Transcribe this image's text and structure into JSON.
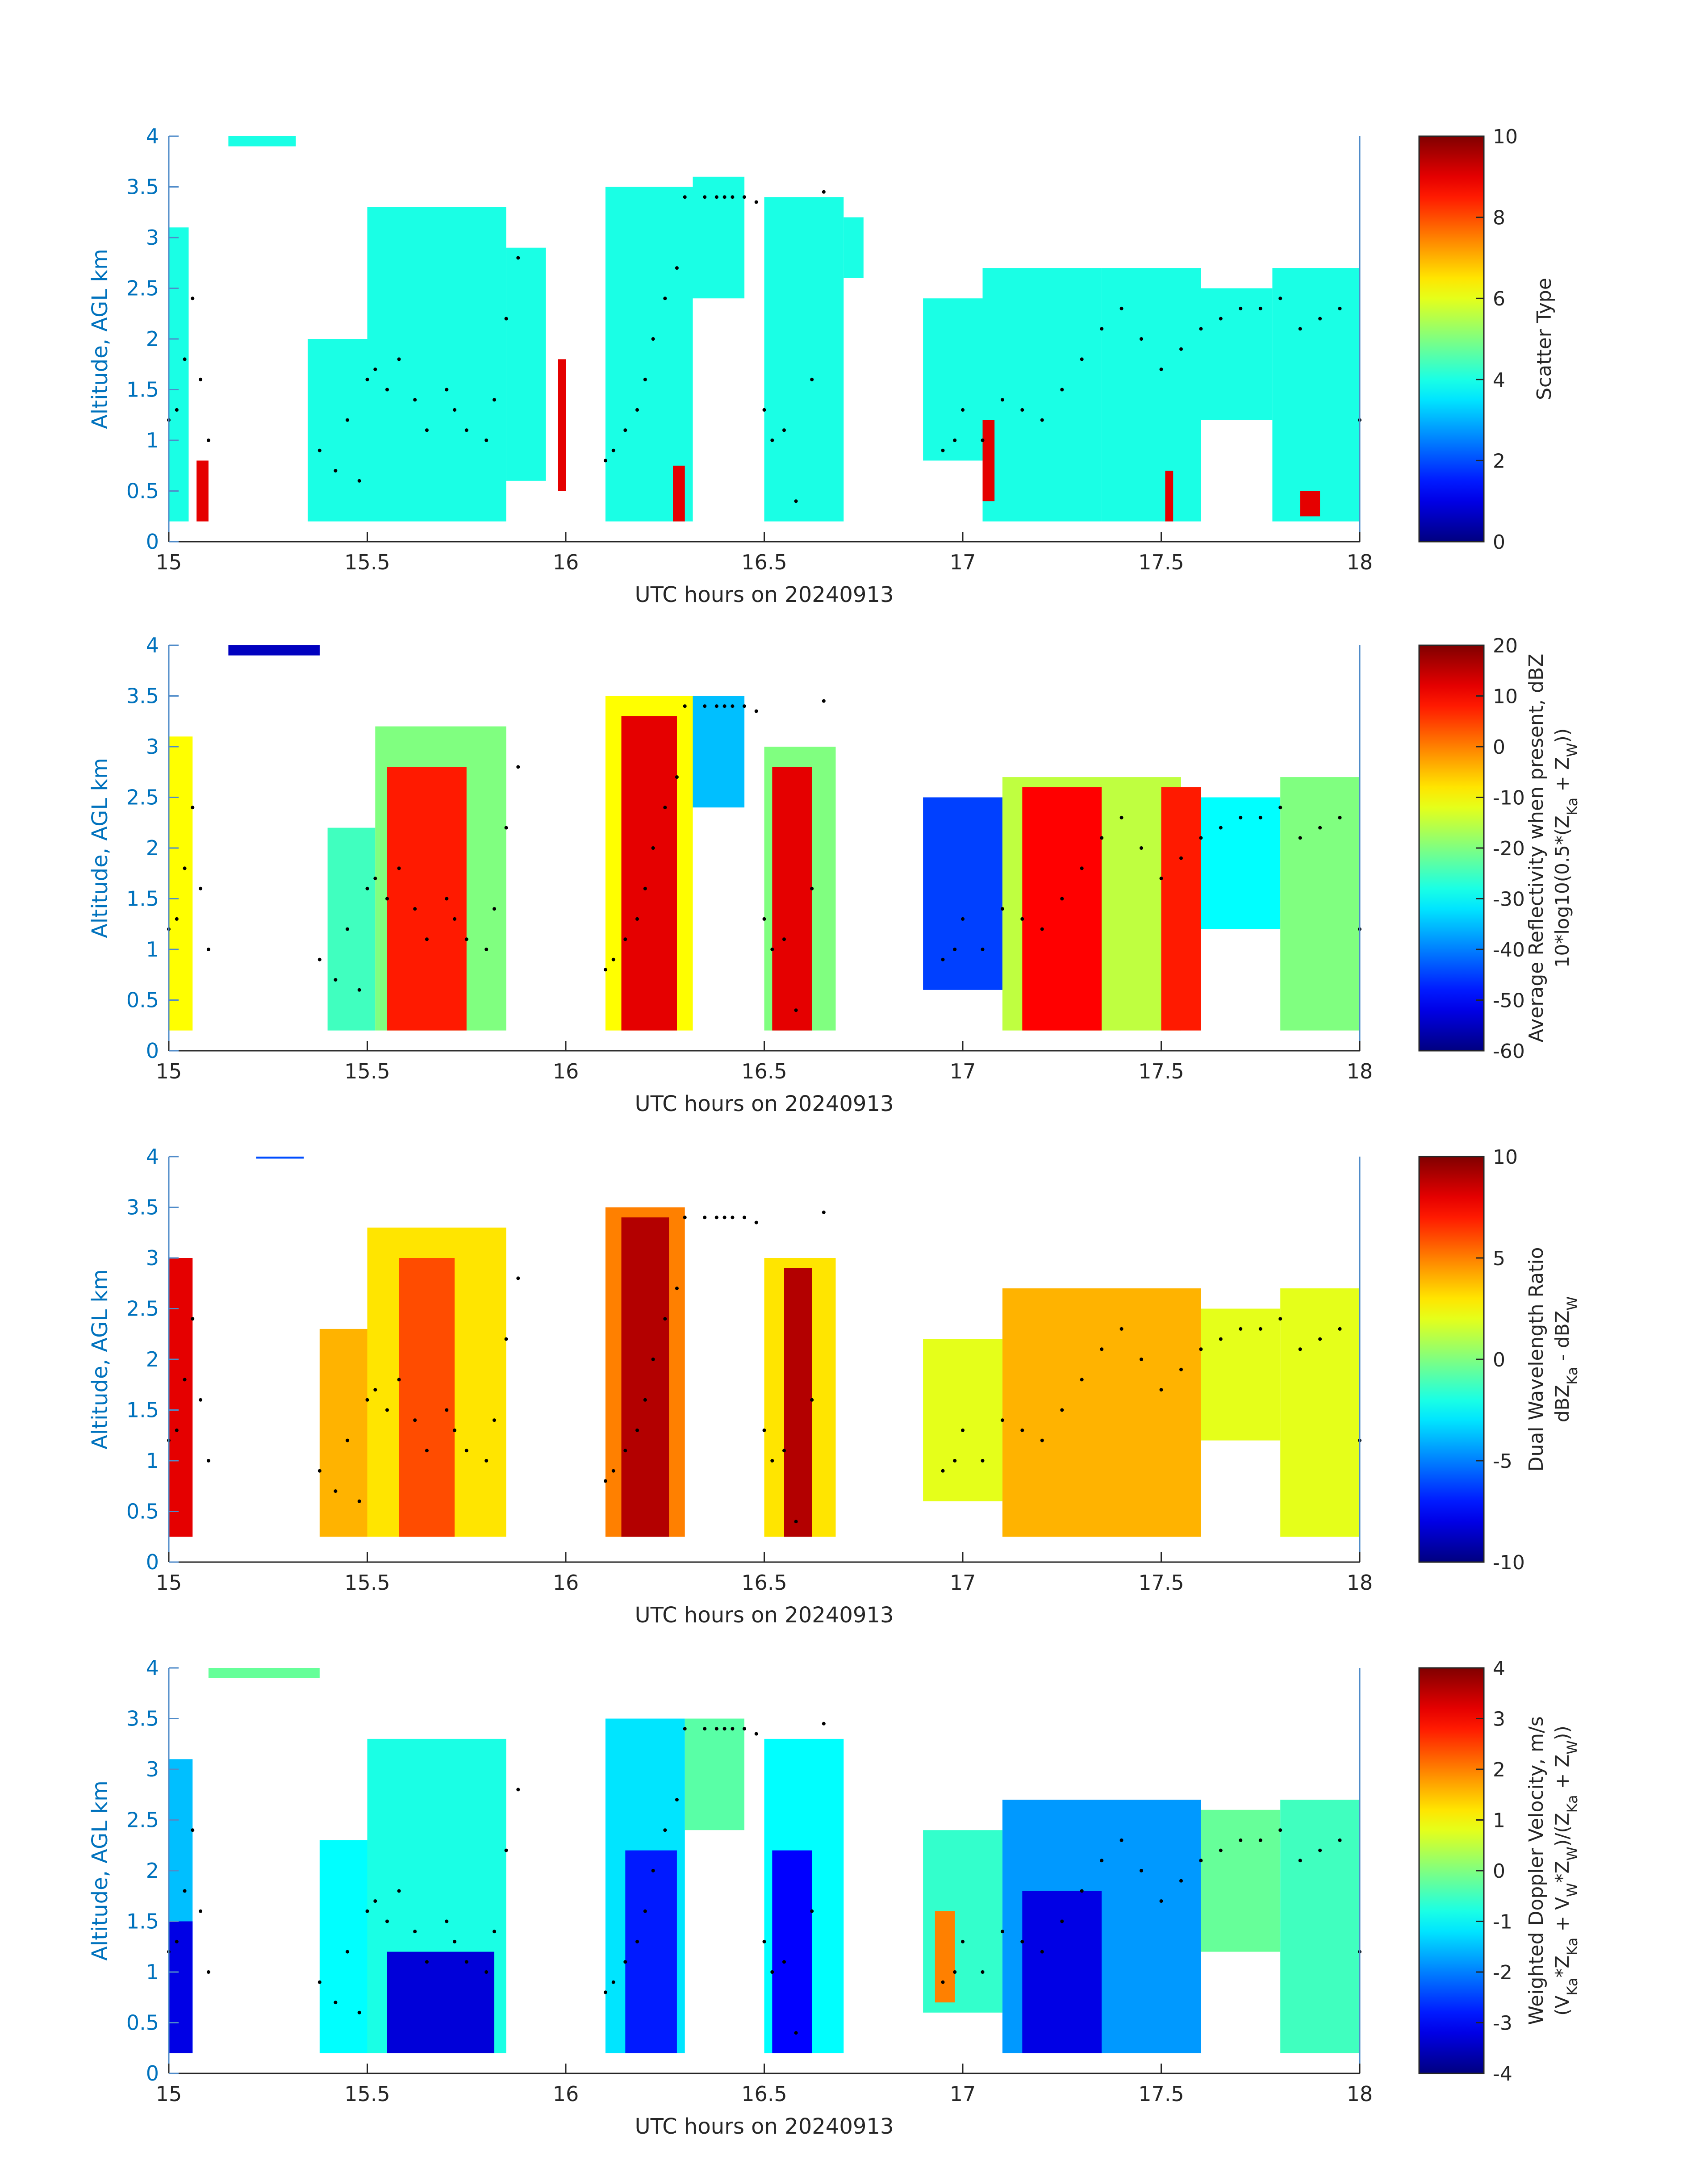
{
  "figure": {
    "colors": {
      "axis_blue": "#0072BD",
      "text_dark": "#262626",
      "marker_black": "#000000",
      "axis_frame": "#4F8BC9"
    }
  },
  "chart_data": [
    {
      "type": "heatmap",
      "panel": "scatter-type",
      "xlabel": "UTC hours on 20240913",
      "ylabel": "Altitude, AGL km",
      "xlim": [
        15,
        18
      ],
      "ylim": [
        0,
        4
      ],
      "xticks": [
        "15",
        "15.5",
        "16",
        "16.5",
        "17",
        "17.5",
        "18"
      ],
      "yticks": [
        "0",
        "0.5",
        "1",
        "1.5",
        "2",
        "2.5",
        "3",
        "3.5",
        "4"
      ],
      "grid": false,
      "colorbar": {
        "label": [
          "Scatter Type"
        ],
        "clim": [
          0,
          10
        ],
        "ticks": [
          "0",
          "2",
          "4",
          "6",
          "8",
          "10"
        ],
        "colormap": "jet"
      },
      "layers": [
        {
          "x": [
            15.0,
            15.05
          ],
          "y": [
            0.2,
            3.1
          ],
          "value": 4
        },
        {
          "x": [
            15.15,
            15.32
          ],
          "y": [
            3.9,
            4.0
          ],
          "value": 4
        },
        {
          "x": [
            15.35,
            15.5
          ],
          "y": [
            0.2,
            2.0
          ],
          "value": 4
        },
        {
          "x": [
            15.5,
            15.85
          ],
          "y": [
            0.2,
            3.3
          ],
          "value": 4
        },
        {
          "x": [
            15.85,
            15.95
          ],
          "y": [
            0.6,
            2.9
          ],
          "value": 4
        },
        {
          "x": [
            16.1,
            16.32
          ],
          "y": [
            0.2,
            3.5
          ],
          "value": 4
        },
        {
          "x": [
            16.32,
            16.45
          ],
          "y": [
            2.4,
            3.6
          ],
          "value": 4
        },
        {
          "x": [
            16.5,
            16.7
          ],
          "y": [
            0.2,
            3.4
          ],
          "value": 4
        },
        {
          "x": [
            16.7,
            16.75
          ],
          "y": [
            2.6,
            3.2
          ],
          "value": 4
        },
        {
          "x": [
            16.9,
            17.05
          ],
          "y": [
            0.8,
            2.4
          ],
          "value": 4
        },
        {
          "x": [
            17.05,
            17.35
          ],
          "y": [
            0.2,
            2.7
          ],
          "value": 4
        },
        {
          "x": [
            17.35,
            17.6
          ],
          "y": [
            0.2,
            2.7
          ],
          "value": 4
        },
        {
          "x": [
            17.6,
            17.78
          ],
          "y": [
            1.2,
            2.5
          ],
          "value": 4
        },
        {
          "x": [
            17.78,
            18.0
          ],
          "y": [
            0.2,
            2.7
          ],
          "value": 4
        },
        {
          "x": [
            15.07,
            15.1
          ],
          "y": [
            0.2,
            0.8
          ],
          "value": 9
        },
        {
          "x": [
            15.98,
            16.0
          ],
          "y": [
            0.5,
            1.8
          ],
          "value": 9
        },
        {
          "x": [
            16.27,
            16.3
          ],
          "y": [
            0.2,
            0.75
          ],
          "value": 9
        },
        {
          "x": [
            17.05,
            17.08
          ],
          "y": [
            0.4,
            1.2
          ],
          "value": 9
        },
        {
          "x": [
            17.51,
            17.53
          ],
          "y": [
            0.2,
            0.7
          ],
          "value": 9
        },
        {
          "x": [
            17.85,
            17.9
          ],
          "y": [
            0.25,
            0.5
          ],
          "value": 9
        }
      ]
    },
    {
      "type": "heatmap",
      "panel": "average-reflectivity",
      "xlabel": "UTC hours on 20240913",
      "ylabel": "Altitude, AGL km",
      "xlim": [
        15,
        18
      ],
      "ylim": [
        0,
        4
      ],
      "xticks": [
        "15",
        "15.5",
        "16",
        "16.5",
        "17",
        "17.5",
        "18"
      ],
      "yticks": [
        "0",
        "0.5",
        "1",
        "1.5",
        "2",
        "2.5",
        "3",
        "3.5",
        "4"
      ],
      "grid": false,
      "colorbar": {
        "label": [
          "Average Reflectivity when present, dBZ",
          "10*log10(0.5*(Z",
          "Ka",
          " + Z",
          "W",
          "))"
        ],
        "clim": [
          -60,
          20
        ],
        "ticks": [
          "-60",
          "-50",
          "-40",
          "-30",
          "-20",
          "-10",
          "0",
          "10",
          "20"
        ],
        "colormap": "jet"
      },
      "layers": [
        {
          "x": [
            15.0,
            15.06
          ],
          "y": [
            0.2,
            3.1
          ],
          "value": -10
        },
        {
          "x": [
            15.15,
            15.38
          ],
          "y": [
            3.9,
            4.0
          ],
          "value": -55
        },
        {
          "x": [
            15.4,
            15.52
          ],
          "y": [
            0.2,
            2.2
          ],
          "value": -25
        },
        {
          "x": [
            15.52,
            15.85
          ],
          "y": [
            0.2,
            3.2
          ],
          "value": -20
        },
        {
          "x": [
            15.55,
            15.75
          ],
          "y": [
            0.2,
            2.8
          ],
          "value": 8
        },
        {
          "x": [
            16.1,
            16.32
          ],
          "y": [
            0.2,
            3.5
          ],
          "value": -10
        },
        {
          "x": [
            16.14,
            16.28
          ],
          "y": [
            0.2,
            3.3
          ],
          "value": 12
        },
        {
          "x": [
            16.32,
            16.45
          ],
          "y": [
            2.4,
            3.5
          ],
          "value": -35
        },
        {
          "x": [
            16.5,
            16.68
          ],
          "y": [
            0.2,
            3.0
          ],
          "value": -20
        },
        {
          "x": [
            16.52,
            16.62
          ],
          "y": [
            0.2,
            2.8
          ],
          "value": 12
        },
        {
          "x": [
            16.9,
            17.1
          ],
          "y": [
            0.6,
            2.5
          ],
          "value": -45
        },
        {
          "x": [
            17.1,
            17.55
          ],
          "y": [
            0.2,
            2.7
          ],
          "value": -15
        },
        {
          "x": [
            17.15,
            17.35
          ],
          "y": [
            0.2,
            2.6
          ],
          "value": 10
        },
        {
          "x": [
            17.5,
            17.6
          ],
          "y": [
            0.2,
            2.6
          ],
          "value": 8
        },
        {
          "x": [
            17.6,
            17.8
          ],
          "y": [
            1.2,
            2.5
          ],
          "value": -30
        },
        {
          "x": [
            17.8,
            18.0
          ],
          "y": [
            0.2,
            2.7
          ],
          "value": -20
        }
      ]
    },
    {
      "type": "heatmap",
      "panel": "dual-wavelength-ratio",
      "xlabel": "UTC hours on 20240913",
      "ylabel": "Altitude, AGL km",
      "xlim": [
        15,
        18
      ],
      "ylim": [
        0,
        4
      ],
      "xticks": [
        "15",
        "15.5",
        "16",
        "16.5",
        "17",
        "17.5",
        "18"
      ],
      "yticks": [
        "0",
        "0.5",
        "1",
        "1.5",
        "2",
        "2.5",
        "3",
        "3.5",
        "4"
      ],
      "grid": false,
      "colorbar": {
        "label": [
          "Dual Wavelength Ratio",
          "dBZ",
          "Ka",
          " - dBZ",
          "W"
        ],
        "clim": [
          -10,
          10
        ],
        "ticks": [
          "-10",
          "-5",
          "0",
          "5",
          "10"
        ],
        "colormap": "jet"
      },
      "layers": [
        {
          "x": [
            15.0,
            15.06
          ],
          "y": [
            0.25,
            3.0
          ],
          "value": 8
        },
        {
          "x": [
            15.22,
            15.34
          ],
          "y": [
            3.98,
            4.0
          ],
          "value": -6
        },
        {
          "x": [
            15.38,
            15.5
          ],
          "y": [
            0.25,
            2.3
          ],
          "value": 4
        },
        {
          "x": [
            15.5,
            15.85
          ],
          "y": [
            0.25,
            3.3
          ],
          "value": 3
        },
        {
          "x": [
            15.58,
            15.72
          ],
          "y": [
            0.25,
            3.0
          ],
          "value": 6
        },
        {
          "x": [
            16.1,
            16.3
          ],
          "y": [
            0.25,
            3.5
          ],
          "value": 5
        },
        {
          "x": [
            16.14,
            16.26
          ],
          "y": [
            0.25,
            3.4
          ],
          "value": 9
        },
        {
          "x": [
            16.5,
            16.68
          ],
          "y": [
            0.25,
            3.0
          ],
          "value": 3
        },
        {
          "x": [
            16.55,
            16.62
          ],
          "y": [
            0.25,
            2.9
          ],
          "value": 9
        },
        {
          "x": [
            16.9,
            17.1
          ],
          "y": [
            0.6,
            2.2
          ],
          "value": 2
        },
        {
          "x": [
            17.1,
            17.6
          ],
          "y": [
            0.25,
            2.7
          ],
          "value": 4
        },
        {
          "x": [
            17.6,
            17.8
          ],
          "y": [
            1.2,
            2.5
          ],
          "value": 2
        },
        {
          "x": [
            17.8,
            18.0
          ],
          "y": [
            0.25,
            2.7
          ],
          "value": 2
        }
      ]
    },
    {
      "type": "heatmap",
      "panel": "weighted-doppler-velocity",
      "xlabel": "UTC hours on 20240913",
      "ylabel": "Altitude, AGL km",
      "xlim": [
        15,
        18
      ],
      "ylim": [
        0,
        4
      ],
      "xticks": [
        "15",
        "15.5",
        "16",
        "16.5",
        "17",
        "17.5",
        "18"
      ],
      "yticks": [
        "0",
        "0.5",
        "1",
        "1.5",
        "2",
        "2.5",
        "3",
        "3.5",
        "4"
      ],
      "grid": false,
      "colorbar": {
        "label": [
          "Weighted Doppler Velocity, m/s",
          "(V",
          "Ka",
          "*Z",
          "Ka",
          " + V",
          "W",
          "*Z",
          "W",
          ")/(Z",
          "Ka",
          " + Z",
          "W",
          "))"
        ],
        "clim": [
          -4,
          4
        ],
        "ticks": [
          "-4",
          "-3",
          "-2",
          "-1",
          "0",
          "1",
          "2",
          "3",
          "4"
        ],
        "colormap": "jet"
      },
      "layers": [
        {
          "x": [
            15.0,
            15.06
          ],
          "y": [
            0.2,
            3.1
          ],
          "value": -1.5
        },
        {
          "x": [
            15.0,
            15.06
          ],
          "y": [
            0.2,
            1.5
          ],
          "value": -3.2
        },
        {
          "x": [
            15.1,
            15.38
          ],
          "y": [
            3.9,
            4.0
          ],
          "value": -0.2
        },
        {
          "x": [
            15.38,
            15.5
          ],
          "y": [
            0.2,
            2.3
          ],
          "value": -1.0
        },
        {
          "x": [
            15.5,
            15.85
          ],
          "y": [
            0.2,
            3.3
          ],
          "value": -0.8
        },
        {
          "x": [
            15.55,
            15.82
          ],
          "y": [
            0.2,
            1.2
          ],
          "value": -3.3
        },
        {
          "x": [
            16.1,
            16.3
          ],
          "y": [
            0.2,
            3.5
          ],
          "value": -1.2
        },
        {
          "x": [
            16.15,
            16.28
          ],
          "y": [
            0.2,
            2.2
          ],
          "value": -2.8
        },
        {
          "x": [
            16.3,
            16.45
          ],
          "y": [
            2.4,
            3.5
          ],
          "value": -0.3
        },
        {
          "x": [
            16.5,
            16.7
          ],
          "y": [
            0.2,
            3.3
          ],
          "value": -1.0
        },
        {
          "x": [
            16.52,
            16.62
          ],
          "y": [
            0.2,
            2.2
          ],
          "value": -3.0
        },
        {
          "x": [
            16.9,
            17.1
          ],
          "y": [
            0.6,
            2.4
          ],
          "value": -0.6
        },
        {
          "x": [
            16.93,
            16.98
          ],
          "y": [
            0.7,
            1.6
          ],
          "value": 2.0
        },
        {
          "x": [
            17.1,
            17.6
          ],
          "y": [
            0.2,
            2.7
          ],
          "value": -1.8
        },
        {
          "x": [
            17.15,
            17.35
          ],
          "y": [
            0.2,
            1.8
          ],
          "value": -3.2
        },
        {
          "x": [
            17.6,
            17.8
          ],
          "y": [
            1.2,
            2.6
          ],
          "value": -0.2
        },
        {
          "x": [
            17.8,
            18.0
          ],
          "y": [
            0.2,
            2.7
          ],
          "value": -0.5
        }
      ]
    }
  ],
  "markers": {
    "x": [
      15.0,
      15.02,
      15.04,
      15.06,
      15.08,
      15.1,
      15.38,
      15.42,
      15.45,
      15.48,
      15.5,
      15.52,
      15.55,
      15.58,
      15.62,
      15.65,
      15.7,
      15.72,
      15.75,
      15.8,
      15.82,
      15.85,
      15.88,
      16.1,
      16.12,
      16.15,
      16.18,
      16.2,
      16.22,
      16.25,
      16.28,
      16.3,
      16.35,
      16.38,
      16.4,
      16.42,
      16.45,
      16.48,
      16.5,
      16.52,
      16.55,
      16.58,
      16.62,
      16.65,
      16.95,
      16.98,
      17.0,
      17.05,
      17.1,
      17.15,
      17.2,
      17.25,
      17.3,
      17.35,
      17.4,
      17.45,
      17.5,
      17.55,
      17.6,
      17.65,
      17.7,
      17.75,
      17.8,
      17.85,
      17.9,
      17.95,
      18.0
    ],
    "y": [
      1.2,
      1.3,
      1.8,
      2.4,
      1.6,
      1.0,
      0.9,
      0.7,
      1.2,
      0.6,
      1.6,
      1.7,
      1.5,
      1.8,
      1.4,
      1.1,
      1.5,
      1.3,
      1.1,
      1.0,
      1.4,
      2.2,
      2.8,
      0.8,
      0.9,
      1.1,
      1.3,
      1.6,
      2.0,
      2.4,
      2.7,
      3.4,
      3.4,
      3.4,
      3.4,
      3.4,
      3.4,
      3.35,
      1.3,
      1.0,
      1.1,
      0.4,
      1.6,
      3.45,
      0.9,
      1.0,
      1.3,
      1.0,
      1.4,
      1.3,
      1.2,
      1.5,
      1.8,
      2.1,
      2.3,
      2.0,
      1.7,
      1.9,
      2.1,
      2.2,
      2.3,
      2.3,
      2.4,
      2.1,
      2.2,
      2.3,
      1.2
    ]
  }
}
